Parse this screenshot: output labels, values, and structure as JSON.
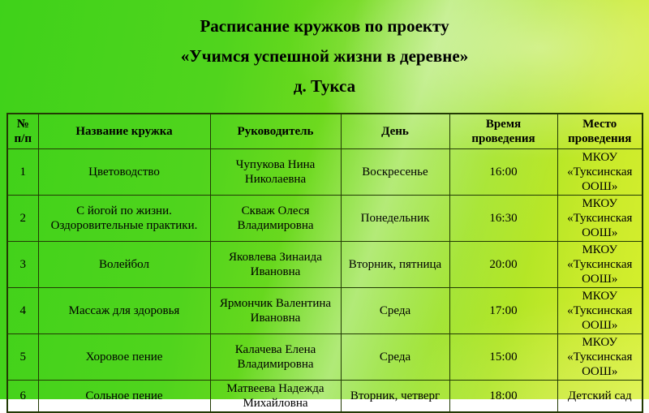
{
  "title": {
    "line1": "Расписание кружков по проекту",
    "line2": "«Учимся успешной жизни в деревне»",
    "line3": "д. Тукса"
  },
  "table": {
    "headers": [
      "№ п/п",
      "Название кружка",
      "Руководитель",
      "День",
      "Время проведения",
      "Место проведения"
    ],
    "rows": [
      {
        "num": "1",
        "club": "Цветоводство",
        "leader": "Чупукова Нина Николаевна",
        "day": "Воскресенье",
        "time": "16:00",
        "place": "МКОУ «Туксинская ООШ»"
      },
      {
        "num": "2",
        "club": "С йогой по жизни. Оздоровительные практики.",
        "leader": "Скваж Олеся Владимировна",
        "day": "Понедельник",
        "time": "16:30",
        "place": "МКОУ «Туксинская ООШ»"
      },
      {
        "num": "3",
        "club": "Волейбол",
        "leader": "Яковлева Зинаида Ивановна",
        "day": "Вторник, пятница",
        "time": "20:00",
        "place": "МКОУ «Туксинская ООШ»"
      },
      {
        "num": "4",
        "club": "Массаж для здоровья",
        "leader": "Ярмончик Валентина Ивановна",
        "day": "Среда",
        "time": "17:00",
        "place": "МКОУ «Туксинская ООШ»"
      },
      {
        "num": "5",
        "club": "Хоровое пение",
        "leader": "Калачева Елена Владимировна",
        "day": "Среда",
        "time": "15:00",
        "place": "МКОУ «Туксинская ООШ»"
      },
      {
        "num": "6",
        "club": "Сольное пение",
        "leader": "Матвеева Надежда Михайловна",
        "day": "Вторник, четверг",
        "time": "18:00",
        "place": "Детский сад"
      }
    ]
  },
  "colors": {
    "background_green": "#46d21c",
    "background_yellow": "#d8f02e",
    "table_border": "#223a04",
    "text": "#000000"
  }
}
